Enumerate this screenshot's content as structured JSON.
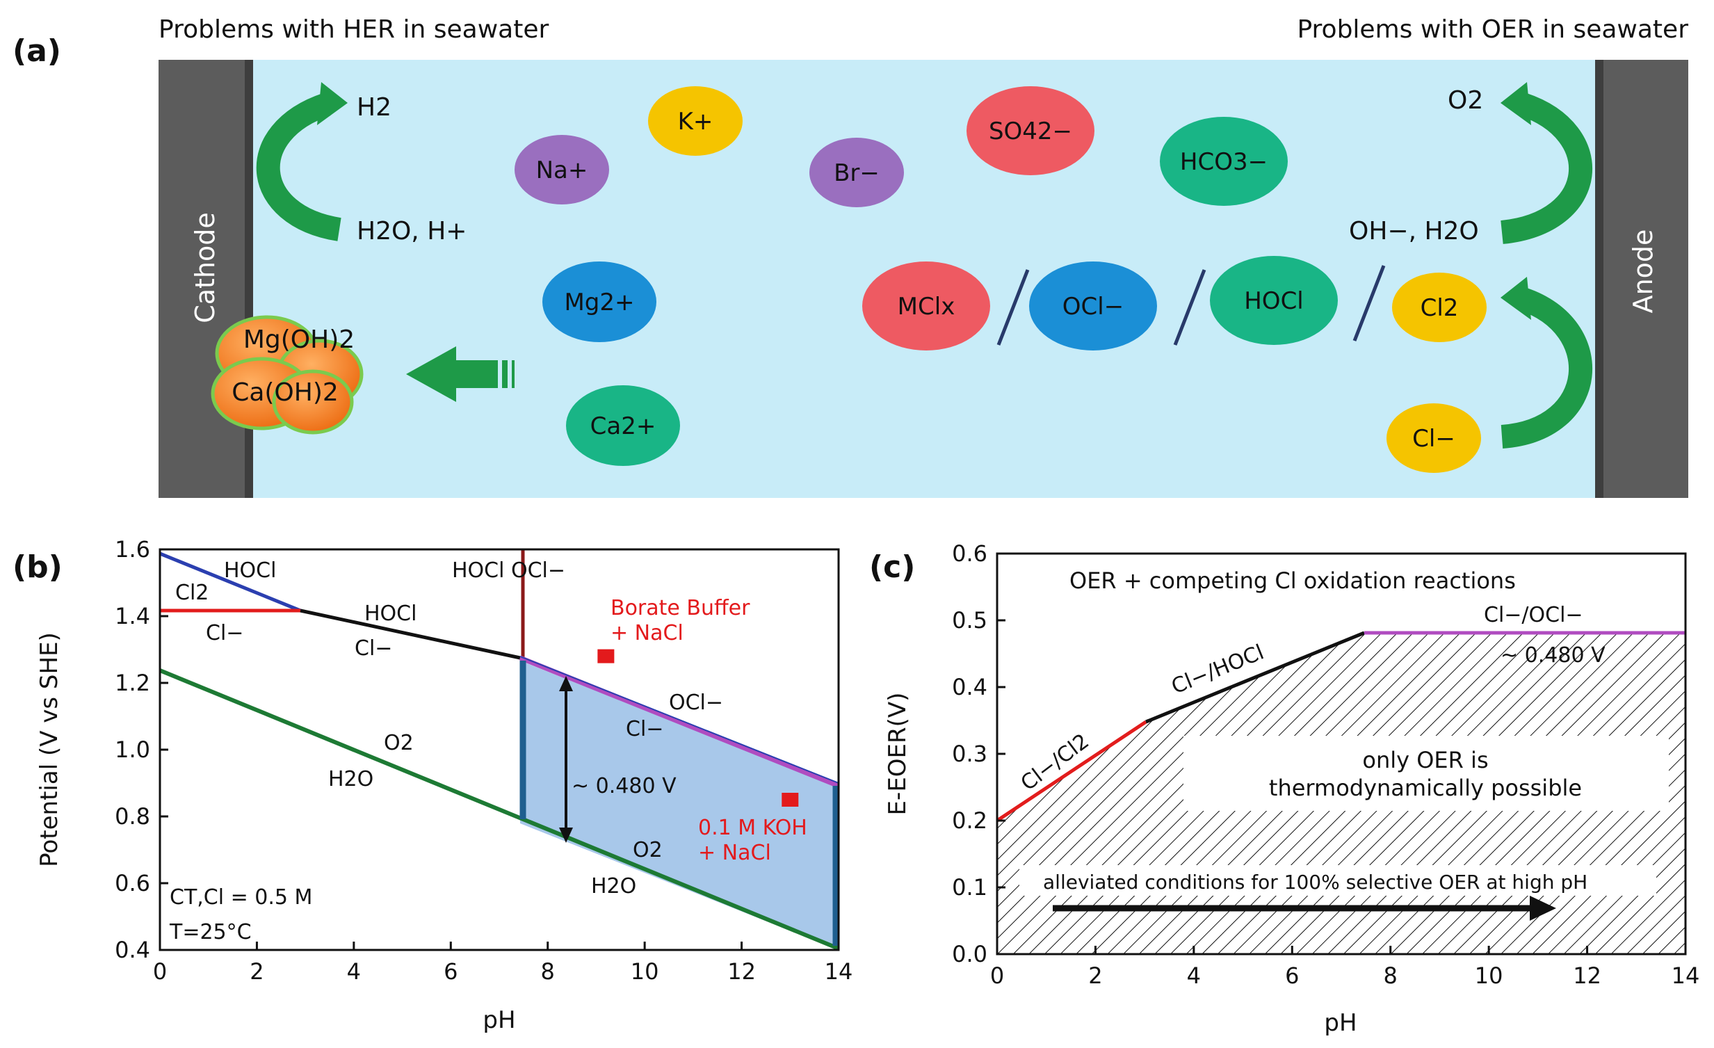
{
  "panel_a": {
    "label": "(a)",
    "title_left": "Problems with HER in seawater",
    "title_right": "Problems with OER in seawater",
    "cathode_label": "Cathode",
    "anode_label": "Anode",
    "her_product": "H2",
    "her_reactant": "H2O, H+",
    "oer_product": "O2",
    "oer_reactant": "OH−, H2O",
    "chloride": "Cl−",
    "precipitate_1": "Mg(OH)2",
    "precipitate_2": "Ca(OH)2",
    "ions": {
      "k": "K+",
      "na": "Na+",
      "br": "Br−",
      "so4": "SO42−",
      "hco3": "HCO3−",
      "mg": "Mg2+",
      "ca": "Ca2+",
      "mclx": "MClx",
      "ocl": "OCl−",
      "hocl": "HOCl",
      "cl2": "Cl2"
    },
    "colors": {
      "electrolyte": "#c8ecf8",
      "electrode": "#5a5a5a",
      "arrow": "#1e9a48",
      "red": "#ee5a62",
      "yellow": "#f5c400",
      "purple": "#9a6fbf",
      "blue": "#1b8fd6",
      "teal": "#19b586",
      "orange": "#f47a1e"
    }
  },
  "panel_b": {
    "label": "(b)",
    "xlabel": "pH",
    "ylabel": "Potential (V vs SHE)",
    "xticks": [
      "0",
      "2",
      "4",
      "6",
      "8",
      "10",
      "12",
      "14"
    ],
    "yticks": [
      "0.4",
      "0.6",
      "0.8",
      "1.0",
      "1.2",
      "1.4",
      "1.6"
    ],
    "region_labels": {
      "hocl_top": "HOCl",
      "cl2": "Cl2",
      "cl_minus_left": "Cl−",
      "hocl_mid": "HOCl",
      "cl_minus_mid": "Cl−",
      "hocl_ocl": "HOCl  OCl−",
      "ocl": "OCl−",
      "cl_minus_right": "Cl−",
      "o2_left": "O2",
      "h2o_left": "H2O",
      "o2_right": "O2",
      "h2o_right": "H2O"
    },
    "borate_1": "Borate Buffer",
    "borate_2": "+ NaCl",
    "koh_1": "0.1 M KOH",
    "koh_2": "+ NaCl",
    "gap_label": "~ 0.480 V",
    "conc_label": "CT,Cl = 0.5 M",
    "temp_label": "T=25°C",
    "chart_data": {
      "type": "line",
      "xlabel": "pH",
      "ylabel": "Potential (V vs SHE)",
      "xlim": [
        0,
        14
      ],
      "ylim": [
        0.4,
        1.6
      ],
      "series": [
        {
          "name": "OER (O2/H2O)",
          "x": [
            0,
            14
          ],
          "y": [
            1.23,
            0.41
          ]
        },
        {
          "name": "Cl2/HOCl",
          "x": [
            0,
            2.9
          ],
          "y": [
            1.59,
            1.42
          ]
        },
        {
          "name": "Cl2/Cl−",
          "x": [
            0,
            2.9
          ],
          "y": [
            1.42,
            1.42
          ]
        },
        {
          "name": "HOCl/Cl−",
          "x": [
            2.9,
            7.5
          ],
          "y": [
            1.42,
            1.28
          ]
        },
        {
          "name": "OCl−/Cl−",
          "x": [
            7.5,
            14
          ],
          "y": [
            1.28,
            0.89
          ]
        },
        {
          "name": "HOCl/OCl−",
          "x": [
            7.5,
            7.5
          ],
          "y": [
            1.28,
            1.6
          ]
        }
      ],
      "markers": [
        {
          "x": 9.2,
          "y": 1.28
        },
        {
          "x": 13.0,
          "y": 0.85
        }
      ]
    },
    "colors": {
      "oer": "#1d7a34",
      "blue": "#2b3fb0",
      "red": "#e21c1c",
      "black": "#111111",
      "darkred": "#8b1a1a",
      "purple": "#b04cc0",
      "shade": "#a8c8ea",
      "marker": "#e31a1c"
    }
  },
  "panel_c": {
    "label": "(c)",
    "xlabel": "pH",
    "ylabel": "E-EOER(V)",
    "header": "OER + competing Cl oxidation reactions",
    "cl_cl2": "Cl−/Cl2",
    "cl_hocl": "Cl−/HOCl",
    "cl_ocl": "Cl−/OCl−",
    "gap_label": "~ 0.480 V",
    "only_oer_1": "only OER is",
    "only_oer_2": "thermodynamically possible",
    "alleviated": "alleviated conditions for 100% selective OER at high pH",
    "xticks": [
      "0",
      "2",
      "4",
      "6",
      "8",
      "10",
      "12",
      "14"
    ],
    "yticks": [
      "0.0",
      "0.1",
      "0.2",
      "0.3",
      "0.4",
      "0.5",
      "0.6"
    ],
    "chart_data": {
      "type": "line",
      "xlabel": "pH",
      "ylabel": "E-EOER(V)",
      "xlim": [
        0,
        14
      ],
      "ylim": [
        0.0,
        0.6
      ],
      "series": [
        {
          "name": "Cl−/Cl2",
          "x": [
            0,
            3
          ],
          "y": [
            0.18,
            0.35
          ]
        },
        {
          "name": "Cl−/HOCl",
          "x": [
            3,
            7.5
          ],
          "y": [
            0.35,
            0.48
          ]
        },
        {
          "name": "Cl−/OCl−",
          "x": [
            7.5,
            14
          ],
          "y": [
            0.48,
            0.48
          ]
        }
      ]
    },
    "colors": {
      "red": "#e21c1c",
      "black": "#111111",
      "purple": "#b04cc0"
    }
  }
}
